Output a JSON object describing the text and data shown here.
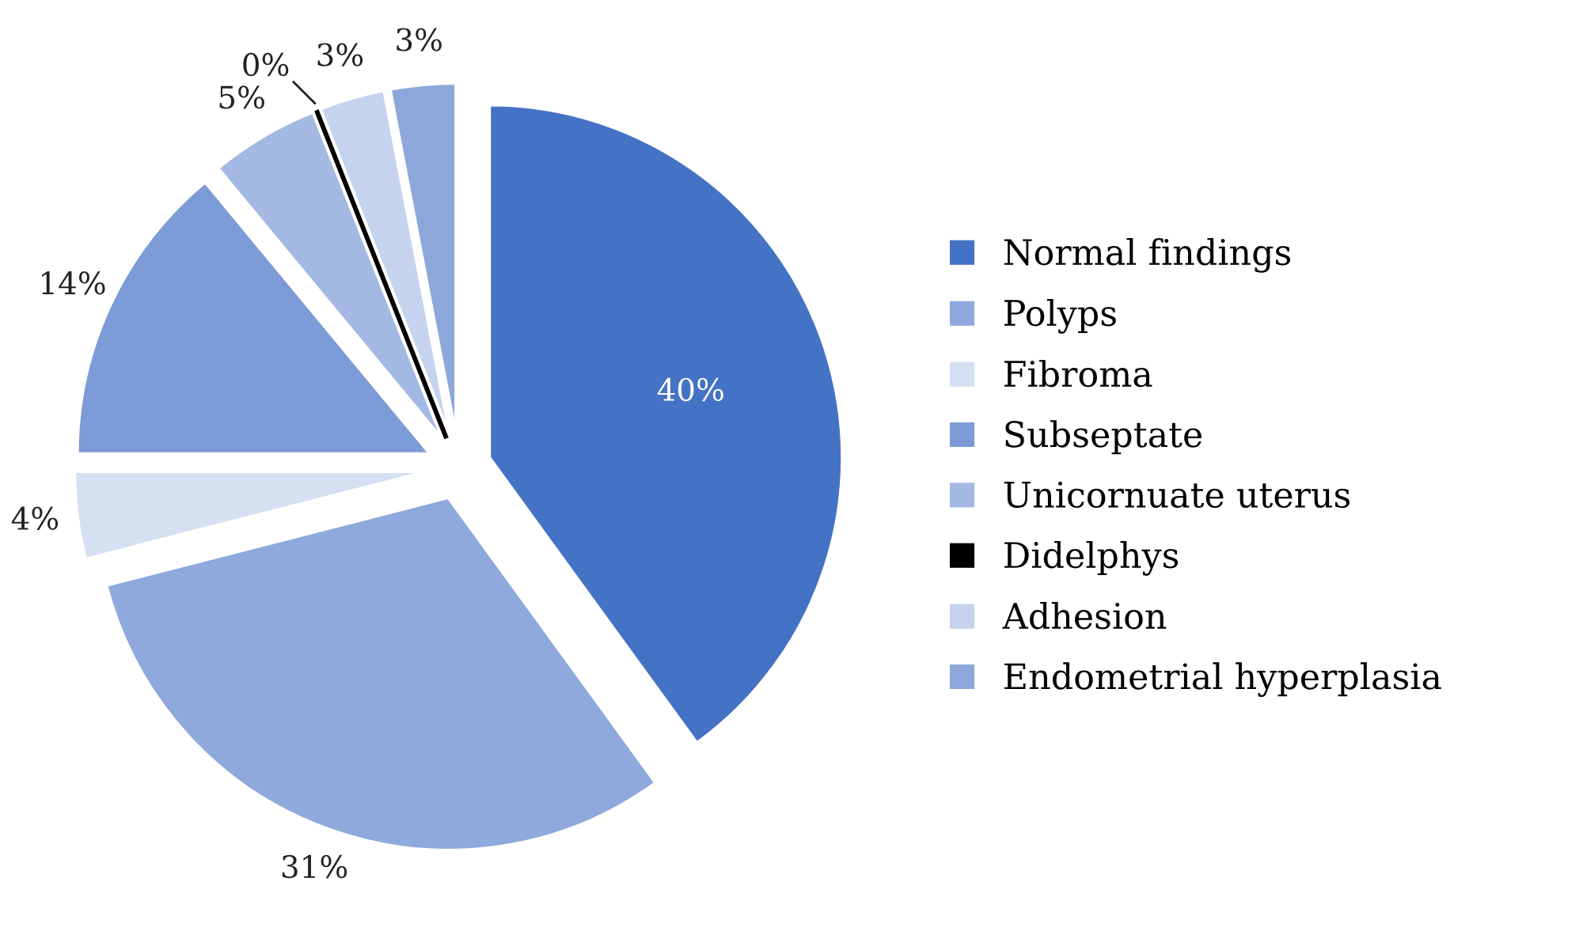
{
  "chart_data": {
    "type": "pie",
    "categories": [
      "Normal findings",
      "Polyps",
      "Fibroma",
      "Subseptate",
      "Unicornuate uterus",
      "Didelphys",
      "Adhesion",
      "Endometrial hyperplasia"
    ],
    "values": [
      40,
      31,
      4,
      14,
      5,
      0,
      3,
      3
    ],
    "value_labels": [
      "40%",
      "31%",
      "4%",
      "14%",
      "5%",
      "0%",
      "3%",
      "3%"
    ],
    "colors": [
      "#4472c4",
      "#8fa9dc",
      "#d6e0f3",
      "#7d9bd6",
      "#a3b8e3",
      "#000000",
      "#c5d3ee",
      "#8ea7db"
    ],
    "legend": "right"
  }
}
